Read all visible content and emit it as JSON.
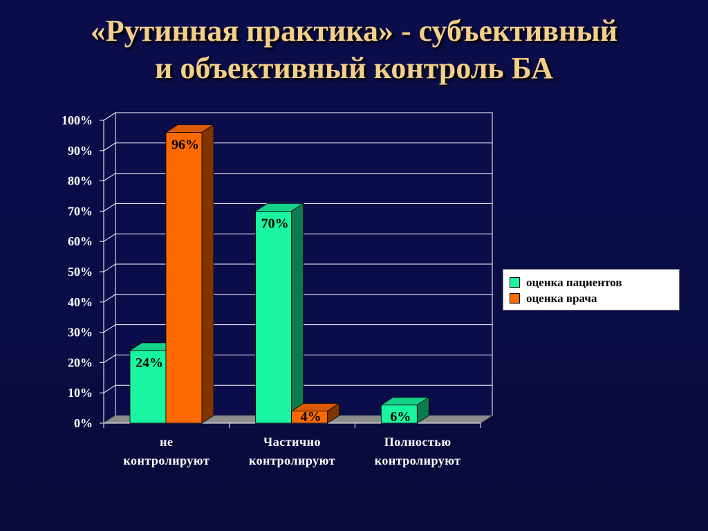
{
  "title": {
    "line1": "«Рутинная практика» - субъективный",
    "line2": "и объективный контроль БА"
  },
  "colors": {
    "background": "#0b0d4a",
    "title": "#f3cf8a",
    "patients": "#19f5a0",
    "doctor": "#ff6a00"
  },
  "chart_data": {
    "type": "bar",
    "style": "3d-clustered",
    "categories": [
      [
        "не",
        "контролируют"
      ],
      [
        "Частично",
        "контролируют"
      ],
      [
        "Полностью",
        "контролируют"
      ]
    ],
    "series": [
      {
        "name": "оценка пациентов",
        "values": [
          24,
          70,
          6
        ],
        "labels": [
          "24%",
          "70%",
          "6%"
        ]
      },
      {
        "name": "оценка врача",
        "values": [
          96,
          4,
          0
        ],
        "labels": [
          "96%",
          "4%",
          ""
        ]
      }
    ],
    "y_ticks": [
      "0%",
      "10%",
      "20%",
      "30%",
      "40%",
      "50%",
      "60%",
      "70%",
      "80%",
      "90%",
      "100%"
    ],
    "ylim": [
      0,
      100
    ],
    "grid": true,
    "legend_position": "right"
  }
}
